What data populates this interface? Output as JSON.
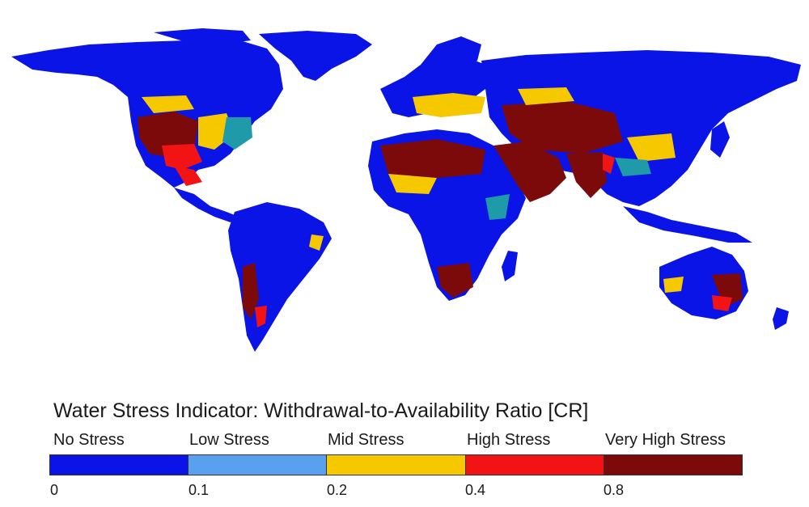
{
  "map": {
    "colors": {
      "no_stress": "#0a14e6",
      "low_stress": "#5aa0f0",
      "mid_stress": "#f5c800",
      "high_stress": "#f21414",
      "very_high_stress": "#7d0a0a",
      "mid_teal": "#1f9aa8",
      "background": "#ffffff"
    }
  },
  "legend": {
    "title": "Water Stress Indicator: Withdrawal-to-Availability Ratio [CR]",
    "categories": [
      {
        "label": "No Stress",
        "color": "#0a14e6"
      },
      {
        "label": "Low Stress",
        "color": "#5aa0f0"
      },
      {
        "label": "Mid Stress",
        "color": "#f5c800"
      },
      {
        "label": "High Stress",
        "color": "#f21414"
      },
      {
        "label": "Very High Stress",
        "color": "#7d0a0a"
      }
    ],
    "ticks": [
      "0",
      "0.1",
      "0.2",
      "0.4",
      "0.8"
    ]
  }
}
